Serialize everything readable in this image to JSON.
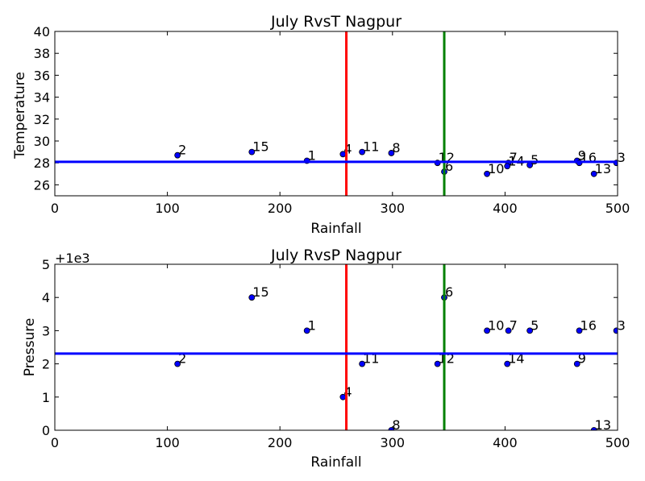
{
  "chart_data": [
    {
      "type": "scatter",
      "title": "July RvsT Nagpur",
      "xlabel": "Rainfall",
      "ylabel": "Temperature",
      "xlim": [
        0,
        500
      ],
      "ylim": [
        25,
        40
      ],
      "xticks": [
        0,
        100,
        200,
        300,
        400,
        500
      ],
      "yticks": [
        26,
        28,
        30,
        32,
        34,
        36,
        38,
        40
      ],
      "offset_text": "",
      "points": [
        {
          "label": "1",
          "x": 224,
          "y": 28.2
        },
        {
          "label": "2",
          "x": 109,
          "y": 28.7
        },
        {
          "label": "3",
          "x": 499,
          "y": 28.0
        },
        {
          "label": "4",
          "x": 256,
          "y": 28.8
        },
        {
          "label": "5",
          "x": 422,
          "y": 27.8
        },
        {
          "label": "6",
          "x": 346,
          "y": 27.2
        },
        {
          "label": "7",
          "x": 403,
          "y": 28.0
        },
        {
          "label": "8",
          "x": 299,
          "y": 28.9
        },
        {
          "label": "9",
          "x": 464,
          "y": 28.2
        },
        {
          "label": "10",
          "x": 384,
          "y": 27.0
        },
        {
          "label": "11",
          "x": 273,
          "y": 29.0
        },
        {
          "label": "12",
          "x": 340,
          "y": 28.0
        },
        {
          "label": "13",
          "x": 479,
          "y": 27.0
        },
        {
          "label": "14",
          "x": 402,
          "y": 27.7
        },
        {
          "label": "15",
          "x": 175,
          "y": 29.0
        },
        {
          "label": "16",
          "x": 466,
          "y": 28.0
        }
      ],
      "hline": {
        "y": 28.1,
        "color": "#0000ff"
      },
      "vlines": [
        {
          "x": 259,
          "color": "#ff0000"
        },
        {
          "x": 346,
          "color": "#008000"
        }
      ],
      "marker_color": "#0000ff"
    },
    {
      "type": "scatter",
      "title": "July RvsP Nagpur",
      "xlabel": "Rainfall",
      "ylabel": "Pressure",
      "xlim": [
        0,
        500
      ],
      "ylim": [
        0,
        5
      ],
      "xticks": [
        0,
        100,
        200,
        300,
        400,
        500
      ],
      "yticks": [
        0,
        1,
        2,
        3,
        4,
        5
      ],
      "offset_text": "+1e3",
      "points": [
        {
          "label": "1",
          "x": 224,
          "y": 3
        },
        {
          "label": "2",
          "x": 109,
          "y": 2
        },
        {
          "label": "3",
          "x": 499,
          "y": 3
        },
        {
          "label": "4",
          "x": 256,
          "y": 1
        },
        {
          "label": "5",
          "x": 422,
          "y": 3
        },
        {
          "label": "6",
          "x": 346,
          "y": 4
        },
        {
          "label": "7",
          "x": 403,
          "y": 3
        },
        {
          "label": "8",
          "x": 299,
          "y": 0
        },
        {
          "label": "9",
          "x": 464,
          "y": 2
        },
        {
          "label": "10",
          "x": 384,
          "y": 3
        },
        {
          "label": "11",
          "x": 273,
          "y": 2
        },
        {
          "label": "12",
          "x": 340,
          "y": 2
        },
        {
          "label": "13",
          "x": 479,
          "y": 0
        },
        {
          "label": "14",
          "x": 402,
          "y": 2
        },
        {
          "label": "15",
          "x": 175,
          "y": 4
        },
        {
          "label": "16",
          "x": 466,
          "y": 3
        }
      ],
      "hline": {
        "y": 2.31,
        "color": "#0000ff"
      },
      "vlines": [
        {
          "x": 259,
          "color": "#ff0000"
        },
        {
          "x": 346,
          "color": "#008000"
        }
      ],
      "marker_color": "#0000ff"
    }
  ]
}
